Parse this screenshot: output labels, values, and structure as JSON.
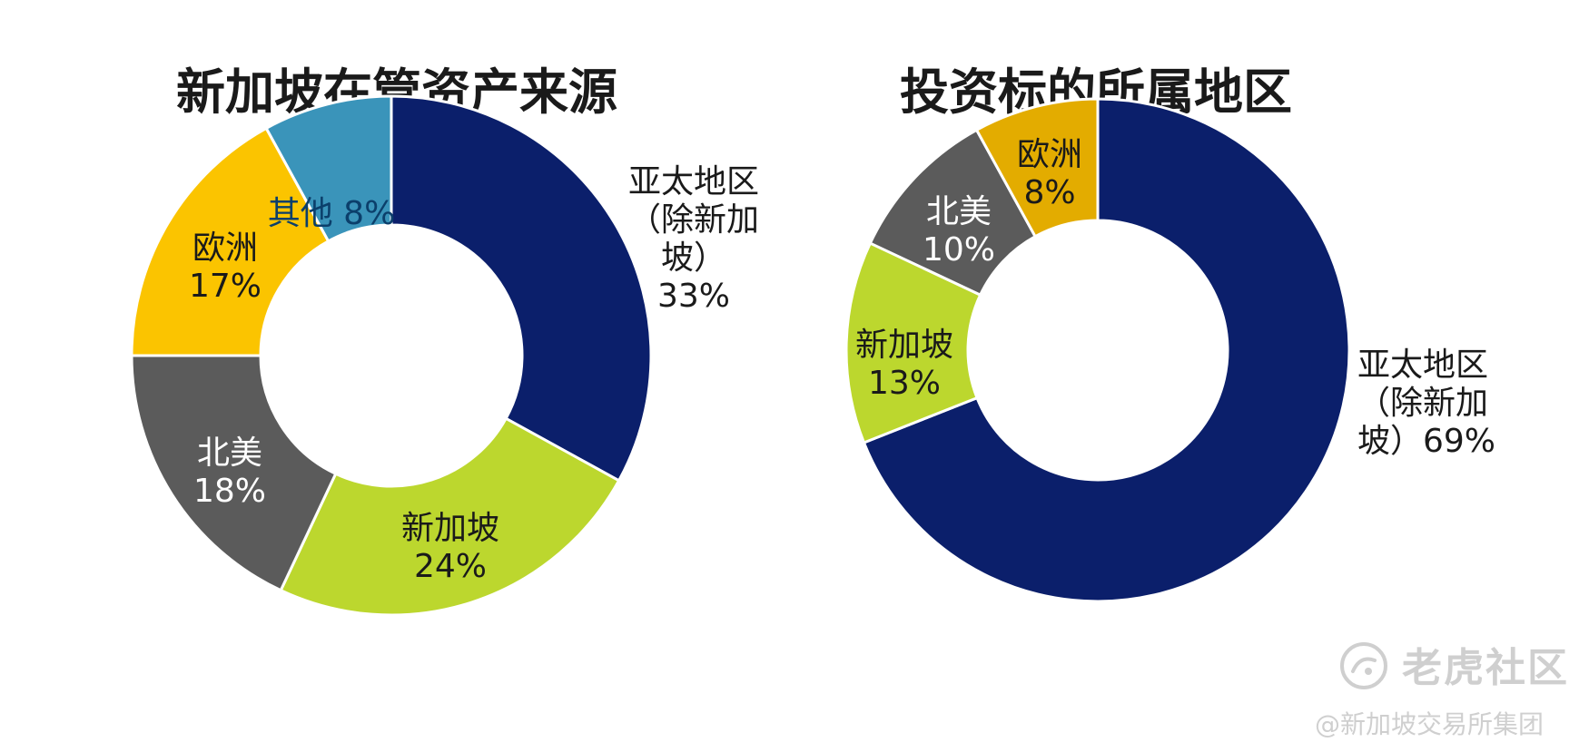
{
  "chart_data": [
    {
      "type": "donut",
      "title": "新加坡在管资产来源",
      "slices": [
        {
          "label": [
            "亚太地区",
            "（除新加",
            "坡）",
            "33%"
          ],
          "value": 33,
          "color": "#0b1f6b",
          "text_color": "#1a1a1a",
          "label_outside": true
        },
        {
          "label": [
            "新加坡",
            "24%"
          ],
          "value": 24,
          "color": "#bcd72e",
          "text_color": "#1a1a1a"
        },
        {
          "label": [
            "北美",
            "18%"
          ],
          "value": 18,
          "color": "#5b5b5b",
          "text_color": "#ffffff"
        },
        {
          "label": [
            "欧洲",
            "17%"
          ],
          "value": 17,
          "color": "#fbc400",
          "text_color": "#1a1a1a"
        },
        {
          "label": [
            "其他 8%"
          ],
          "value": 8,
          "color": "#3a94ba",
          "text_color": "#0b3f6b"
        }
      ]
    },
    {
      "type": "donut",
      "title": "投资标的所属地区",
      "slices": [
        {
          "label": [
            "亚太地区",
            "（除新加",
            "坡）69%"
          ],
          "value": 69,
          "color": "#0b1f6b",
          "text_color": "#1a1a1a",
          "label_outside": true
        },
        {
          "label": [
            "新加坡",
            "13%"
          ],
          "value": 13,
          "color": "#bcd72e",
          "text_color": "#1a1a1a"
        },
        {
          "label": [
            "北美",
            "10%"
          ],
          "value": 10,
          "color": "#5b5b5b",
          "text_color": "#ffffff"
        },
        {
          "label": [
            "欧洲",
            "8%"
          ],
          "value": 8,
          "color": "#e3ac00",
          "text_color": "#1a1a1a"
        }
      ]
    }
  ],
  "watermark": {
    "brand": "老虎社区",
    "credit": "@新加坡交易所集团"
  }
}
